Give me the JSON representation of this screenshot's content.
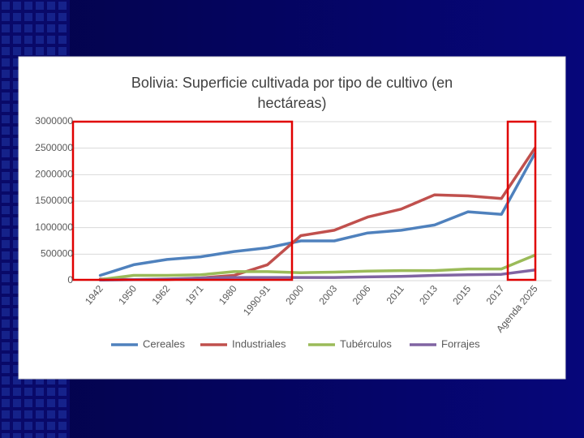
{
  "chart_data": {
    "type": "line",
    "title": "Bolivia: Superficie cultivada por tipo de cultivo (en hectáreas)",
    "categories": [
      "1942",
      "1950",
      "1962",
      "1971",
      "1980",
      "1990-91",
      "2000",
      "2003",
      "2006",
      "2011",
      "2013",
      "2015",
      "2017",
      "Agenda 2025"
    ],
    "series": [
      {
        "name": "Cereales",
        "color": "#4f81bd",
        "values": [
          100000,
          300000,
          400000,
          450000,
          550000,
          620000,
          750000,
          750000,
          900000,
          950000,
          1050000,
          1300000,
          1250000,
          2400000
        ]
      },
      {
        "name": "Industriales",
        "color": "#c0504d",
        "values": [
          30000,
          20000,
          20000,
          50000,
          100000,
          300000,
          850000,
          950000,
          1200000,
          1350000,
          1620000,
          1600000,
          1550000,
          2500000
        ]
      },
      {
        "name": "Tubérculos",
        "color": "#9bbb59",
        "values": [
          20000,
          100000,
          100000,
          110000,
          170000,
          170000,
          150000,
          160000,
          180000,
          190000,
          190000,
          220000,
          220000,
          480000
        ]
      },
      {
        "name": "Forrajes",
        "color": "#8064a2",
        "values": [
          10000,
          20000,
          30000,
          50000,
          60000,
          60000,
          60000,
          60000,
          70000,
          80000,
          100000,
          110000,
          120000,
          200000
        ]
      }
    ],
    "ylim": [
      0,
      3000000
    ],
    "yticks": [
      0,
      500000,
      1000000,
      1500000,
      2000000,
      2500000,
      3000000
    ],
    "grid": true,
    "legend": "bottom"
  }
}
